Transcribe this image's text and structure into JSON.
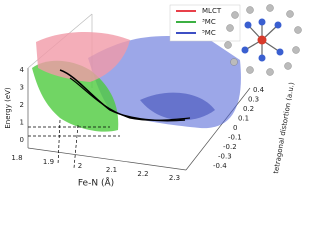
{
  "legend": {
    "entries": [
      {
        "label": "MLCT",
        "color": "#e8404a"
      },
      {
        "label": "³MC",
        "color": "#3cb043"
      },
      {
        "label": "⁵MC",
        "color": "#3d4fc4"
      }
    ]
  },
  "axes": {
    "energy": {
      "label": "Energy (eV)",
      "ticks": [
        "4",
        "3",
        "2",
        "1",
        "0"
      ]
    },
    "fe_n": {
      "label": "Fe-N (Å)",
      "ticks": [
        "1.8",
        "1.9",
        "2",
        "2.1",
        "2.2",
        "2.3"
      ]
    },
    "distortion": {
      "label": "tetragonal distortion (a.u.)",
      "ticks": [
        "0.4",
        "0.3",
        "0.2",
        "0.1",
        "0",
        "-0.1",
        "-0.2",
        "-0.3",
        "-0.4"
      ]
    }
  }
}
